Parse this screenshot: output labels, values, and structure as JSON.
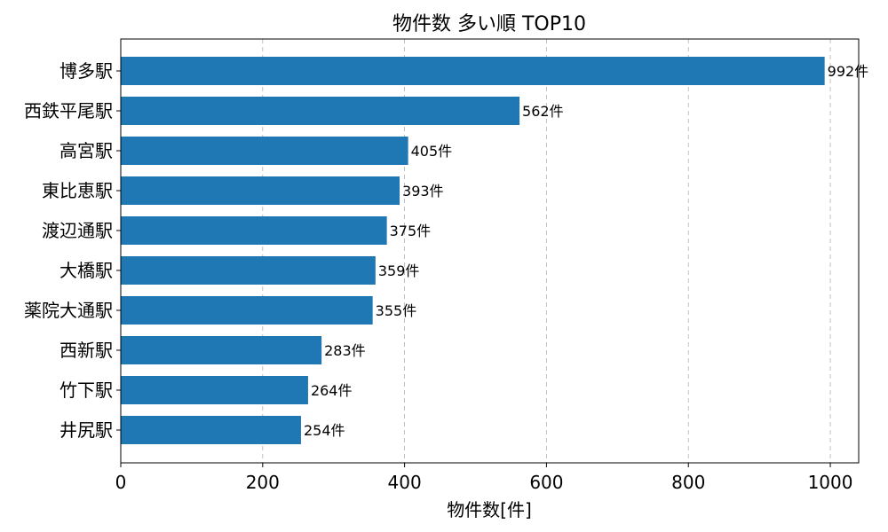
{
  "chart_data": {
    "type": "bar",
    "orientation": "horizontal",
    "title": "物件数 多い順 TOP10",
    "xlabel": "物件数[件]",
    "ylabel": "",
    "categories": [
      "博多駅",
      "西鉄平尾駅",
      "高宮駅",
      "東比恵駅",
      "渡辺通駅",
      "大橋駅",
      "薬院大通駅",
      "西新駅",
      "竹下駅",
      "井尻駅"
    ],
    "values": [
      992,
      562,
      405,
      393,
      375,
      359,
      355,
      283,
      264,
      254
    ],
    "data_labels": [
      "992件",
      "562件",
      "405件",
      "393件",
      "375件",
      "359件",
      "355件",
      "283件",
      "264件",
      "254件"
    ],
    "xlim": [
      0,
      1040
    ],
    "xticks": [
      0,
      200,
      400,
      600,
      800,
      1000
    ],
    "xtick_labels": [
      "0",
      "200",
      "400",
      "600",
      "800",
      "1000"
    ],
    "grid": "x-dashed",
    "legend": "none",
    "bar_color": "#1f77b4"
  }
}
